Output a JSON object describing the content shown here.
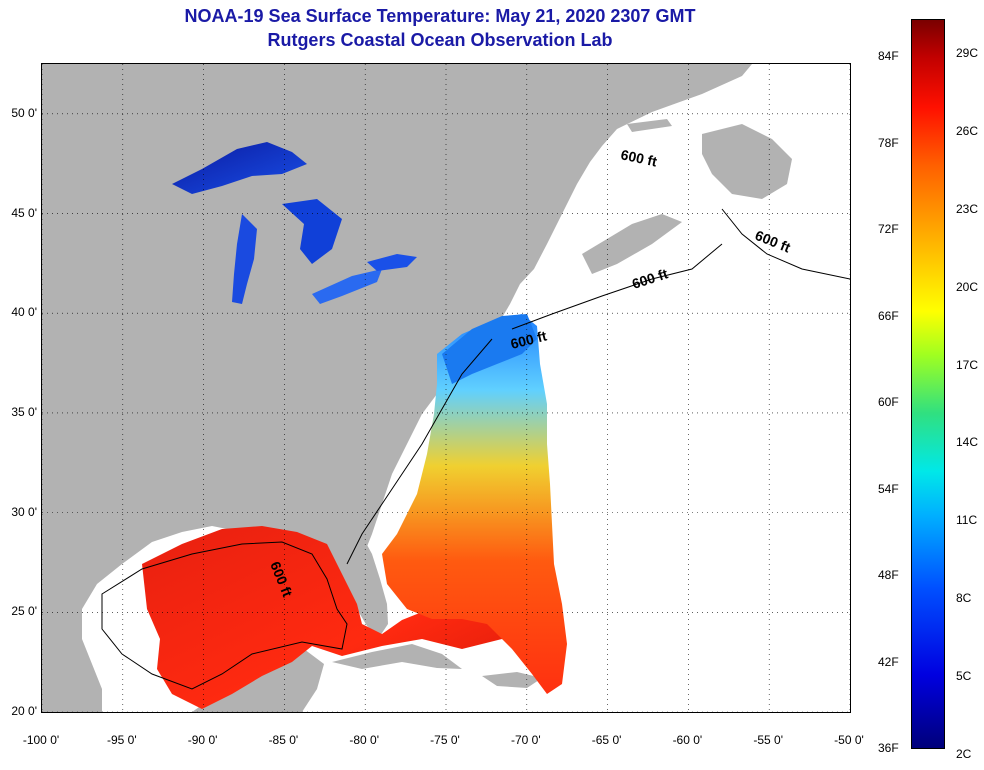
{
  "title": "NOAA-19 Sea Surface Temperature:  May 21, 2020 2307 GMT",
  "subtitle": "Rutgers Coastal Ocean Observation Lab",
  "longitude_labels": [
    "-100 0'",
    "-95 0'",
    "-90 0'",
    "-85 0'",
    "-80 0'",
    "-75 0'",
    "-70 0'",
    "-65 0'",
    "-60 0'",
    "-55 0'",
    "-50 0'"
  ],
  "longitude_values": [
    -100,
    -95,
    -90,
    -85,
    -80,
    -75,
    -70,
    -65,
    -60,
    -55,
    -50
  ],
  "latitude_labels": [
    "50 0'",
    "45 0'",
    "40 0'",
    "35 0'",
    "30 0'",
    "25 0'",
    "20 0'"
  ],
  "latitude_values": [
    50,
    45,
    40,
    35,
    30,
    25,
    20
  ],
  "map_extent": {
    "lon_min": -100,
    "lon_max": -50,
    "lat_min": 20,
    "lat_max": 52.5
  },
  "isobath_labels": [
    "600 ft",
    "600 ft",
    "600 ft",
    "600 ft",
    "600 ft"
  ],
  "colorbar": {
    "fahrenheit": [
      "84F",
      "78F",
      "72F",
      "66F",
      "60F",
      "54F",
      "48F",
      "42F",
      "36F"
    ],
    "fahrenheit_values": [
      84,
      78,
      72,
      66,
      60,
      54,
      48,
      42,
      36
    ],
    "celsius": [
      "29C",
      "26C",
      "23C",
      "20C",
      "17C",
      "14C",
      "11C",
      "8C",
      "5C",
      "2C"
    ],
    "celsius_values": [
      29,
      26,
      23,
      20,
      17,
      14,
      11,
      8,
      5,
      2
    ],
    "range_f": [
      36,
      86.5
    ]
  },
  "colors": {
    "land": "#b2b2b2",
    "ocean_nodata": "#ffffff",
    "title_text": "#1a1aa6",
    "grid": "#000000"
  }
}
